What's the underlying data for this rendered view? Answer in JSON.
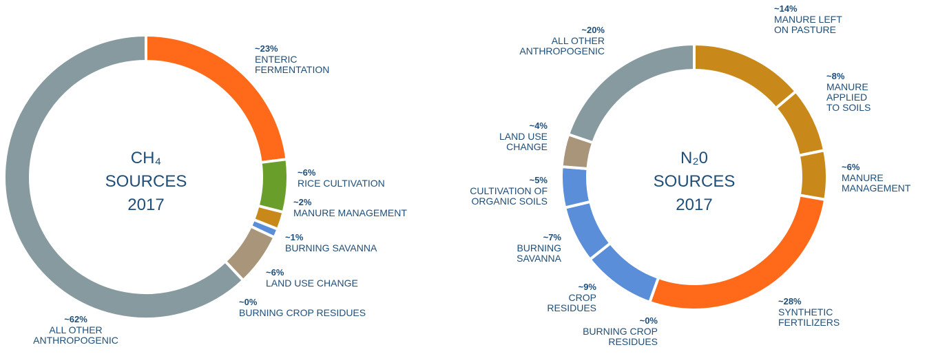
{
  "chart_data": [
    {
      "type": "pie",
      "title": "CH₄\nSOURCES\n2017",
      "categories": [
        "ENTERIC\nFERMENTATION",
        "RICE CULTIVATION",
        "MANURE MANAGEMENT",
        "BURNING SAVANNA",
        "LAND USE CHANGE",
        "BURNING CROP RESIDUES",
        "ALL OTHER\nANTHROPOGENIC"
      ],
      "values": [
        23,
        6,
        2,
        1,
        6,
        0,
        62
      ],
      "value_labels": [
        "~23%",
        "~6%",
        "~2%",
        "~1%",
        "~6%",
        "~0%",
        "~62%"
      ],
      "colors": [
        "#ff6a1a",
        "#6a9e2a",
        "#c8891a",
        "#5a8ed8",
        "#a8957a",
        "#c8c8c8",
        "#879a9f"
      ]
    },
    {
      "type": "pie",
      "title": "N₂0\nSOURCES\n2017",
      "categories": [
        "MANURE LEFT\nON PASTURE",
        "MANURE\nAPPLIED\nTO SOILS",
        "MANURE\nMANAGEMENT",
        "SYNTHETIC\nFERTILIZERS",
        "BURNING CROP\nRESIDUES",
        "CROP\nRESIDUES",
        "BURNING\nSAVANNA",
        "CULTIVATION OF\nORGANIC SOILS",
        "LAND USE\nCHANGE",
        "ALL OTHER\nANTHROPOGENIC"
      ],
      "values": [
        14,
        8,
        6,
        28,
        0,
        9,
        7,
        5,
        4,
        20
      ],
      "value_labels": [
        "~14%",
        "~8%",
        "~6%",
        "~28%",
        "~0%",
        "~9%",
        "~7%",
        "~5%",
        "~4%",
        "~20%"
      ],
      "colors": [
        "#c8891a",
        "#c8891a",
        "#c8891a",
        "#ff6a1a",
        "#c8c8c8",
        "#5a8ed8",
        "#5a8ed8",
        "#5a8ed8",
        "#a8957a",
        "#879a9f"
      ]
    }
  ]
}
